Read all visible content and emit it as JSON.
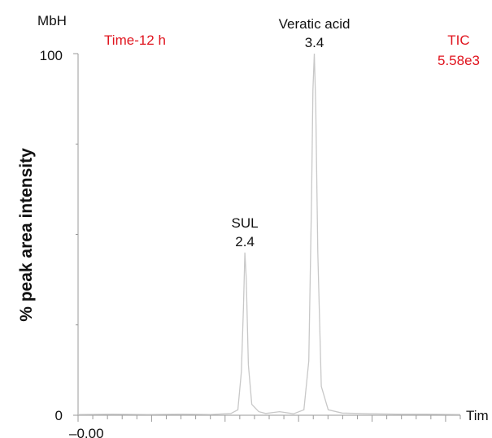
{
  "chart_data": {
    "type": "line",
    "instrument_label": "MbH",
    "sample_label": "Time-12 h",
    "trace_label": "TIC",
    "trace_value": "5.58e3",
    "ylabel": "% peak area intensity",
    "xlabel": "Tim",
    "x_start_label": "–0.00",
    "y_tick_labels": [
      "0",
      "100"
    ],
    "ylim": [
      0,
      100
    ],
    "xlim": [
      0,
      5.5
    ],
    "grid": false,
    "line_color": "#c8c8c8",
    "label_color": "#e0141e",
    "peaks": [
      {
        "name": "SUL",
        "rt": "2.4",
        "x": 2.4,
        "height": 45
      },
      {
        "name": "Veratic acid",
        "rt": "3.4",
        "x": 3.4,
        "height": 100
      }
    ],
    "series": [
      {
        "x": [
          0.0,
          0.5,
          1.0,
          1.5,
          1.9,
          2.2,
          2.3,
          2.35,
          2.38,
          2.4,
          2.42,
          2.45,
          2.5,
          2.6,
          2.7,
          2.9,
          3.1,
          3.25,
          3.32,
          3.36,
          3.38,
          3.4,
          3.42,
          3.45,
          3.5,
          3.6,
          3.8,
          4.2,
          4.6,
          5.0,
          5.5
        ],
        "y": [
          0.2,
          0.3,
          0.2,
          0.3,
          0.2,
          0.5,
          1.5,
          12,
          30,
          45,
          38,
          14,
          3,
          1.0,
          0.5,
          1.0,
          0.4,
          1.5,
          15,
          60,
          90,
          100,
          85,
          45,
          8,
          1.5,
          0.6,
          0.4,
          0.3,
          0.3,
          0.2
        ]
      }
    ]
  }
}
